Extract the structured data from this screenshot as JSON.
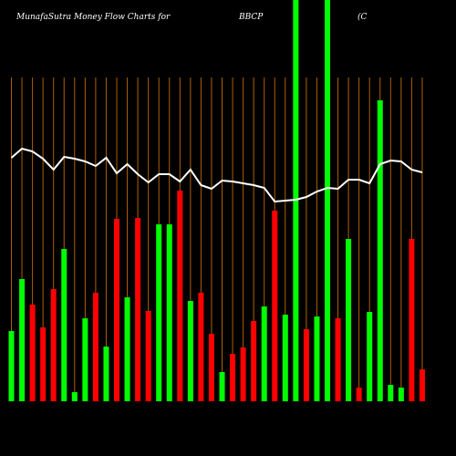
{
  "chart_data": {
    "type": "bar",
    "title": "MunafaSutra  Money Flow  Charts for",
    "ticker": "BBCP",
    "company": "(C",
    "ylim": [
      0,
      440
    ],
    "values": [
      77,
      134,
      106,
      81,
      123,
      167,
      10,
      91,
      119,
      60,
      200,
      114,
      201,
      99,
      194,
      194,
      231,
      110,
      119,
      74,
      32,
      52,
      59,
      88,
      104,
      209,
      95,
      440,
      79,
      93,
      440,
      91,
      178,
      15,
      98,
      330,
      18,
      15,
      178,
      35
    ],
    "colors": [
      "#00ff00",
      "#00ff00",
      "#ff0000",
      "#ff0000",
      "#ff0000",
      "#00ff00",
      "#00ff00",
      "#00ff00",
      "#ff0000",
      "#00ff00",
      "#ff0000",
      "#00ff00",
      "#ff0000",
      "#ff0000",
      "#00ff00",
      "#00ff00",
      "#ff0000",
      "#00ff00",
      "#ff0000",
      "#ff0000",
      "#00ff00",
      "#ff0000",
      "#ff0000",
      "#ff0000",
      "#00ff00",
      "#ff0000",
      "#00ff00",
      "#00ff00",
      "#ff0000",
      "#00ff00",
      "#00ff00",
      "#ff0000",
      "#00ff00",
      "#ff0000",
      "#00ff00",
      "#00ff00",
      "#00ff00",
      "#00ff00",
      "#ff0000",
      "#ff0000"
    ],
    "line": {
      "color": "#ffffff",
      "values": [
        267,
        277,
        274,
        266,
        254,
        268,
        266,
        263,
        258,
        267,
        250,
        260,
        249,
        240,
        249,
        249,
        241,
        254,
        237,
        233,
        242,
        241,
        239,
        237,
        234,
        219,
        220,
        221,
        224,
        230,
        234,
        233,
        243,
        243,
        239,
        260,
        264,
        263,
        254,
        251
      ]
    },
    "grid_color": "#b06000"
  }
}
